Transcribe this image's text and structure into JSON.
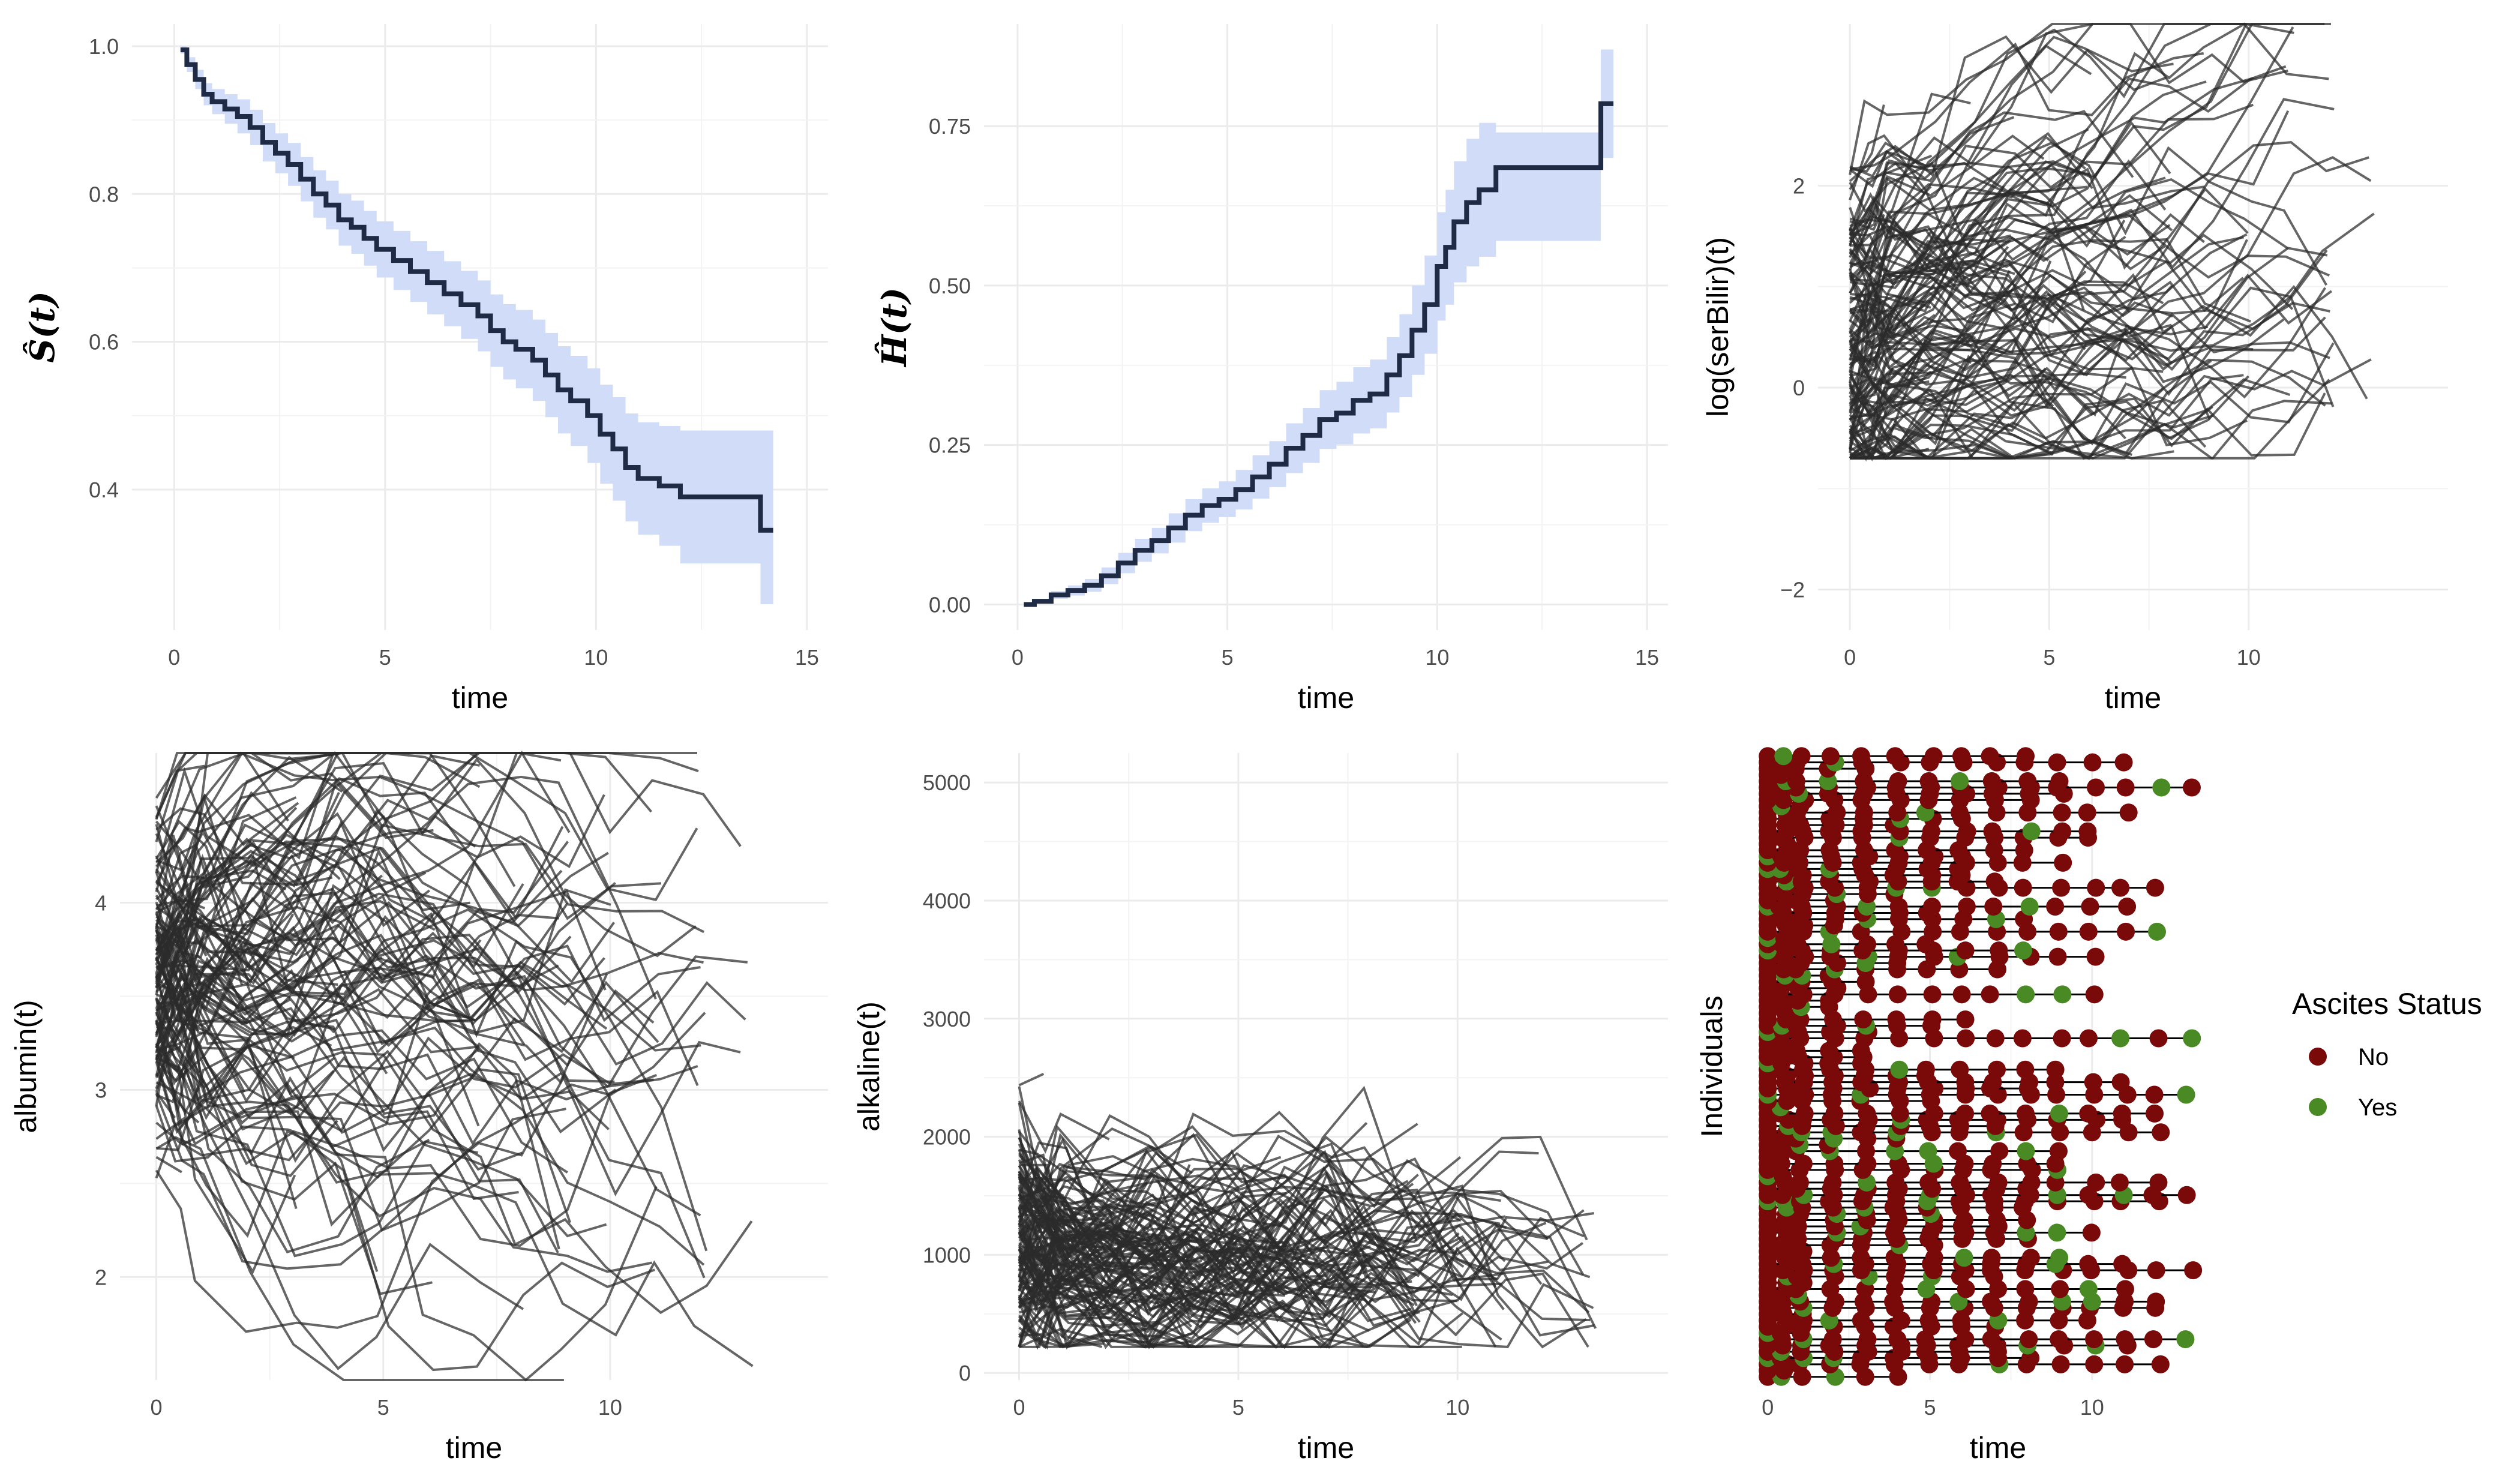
{
  "colors": {
    "ribbon": "#d0dcf8",
    "step_line": "#1f2a44",
    "traj": "#2b2b2b",
    "ascites_no": "#7a0a0a",
    "ascites_yes": "#4a8a24",
    "grid": "#ebebeb"
  },
  "chart_data": [
    {
      "type": "line",
      "id": "surv",
      "xlabel": "time",
      "ylabel": "Ŝ(t)",
      "xlim": [
        -1,
        15.5
      ],
      "ylim": [
        0.21,
        1.03
      ],
      "xticks": [
        0,
        5,
        10,
        15
      ],
      "yticks": [
        0.4,
        0.6,
        0.8,
        1.0
      ],
      "ytick_labels": [
        "0.4",
        "0.6",
        "0.8",
        "1.0"
      ],
      "grid": true,
      "series": [
        {
          "step": true,
          "x": [
            0.15,
            0.3,
            0.5,
            0.7,
            0.9,
            1.2,
            1.5,
            1.8,
            2.1,
            2.4,
            2.7,
            3.0,
            3.3,
            3.6,
            3.9,
            4.2,
            4.5,
            4.8,
            5.2,
            5.6,
            6.0,
            6.4,
            6.8,
            7.2,
            7.5,
            7.8,
            8.1,
            8.5,
            8.8,
            9.1,
            9.4,
            9.8,
            10.1,
            10.4,
            10.7,
            11.0,
            11.5,
            12.0,
            12.5,
            13.0,
            13.5,
            13.9,
            14.2
          ],
          "y": [
            0.995,
            0.975,
            0.955,
            0.935,
            0.925,
            0.915,
            0.905,
            0.89,
            0.87,
            0.855,
            0.84,
            0.82,
            0.8,
            0.785,
            0.765,
            0.755,
            0.74,
            0.725,
            0.71,
            0.695,
            0.68,
            0.665,
            0.65,
            0.635,
            0.615,
            0.6,
            0.59,
            0.575,
            0.555,
            0.535,
            0.52,
            0.5,
            0.475,
            0.455,
            0.43,
            0.415,
            0.405,
            0.39,
            0.39,
            0.39,
            0.39,
            0.345,
            0.345
          ],
          "lower": [
            0.99,
            0.965,
            0.942,
            0.92,
            0.908,
            0.895,
            0.882,
            0.866,
            0.844,
            0.828,
            0.811,
            0.79,
            0.768,
            0.752,
            0.73,
            0.719,
            0.703,
            0.687,
            0.67,
            0.654,
            0.637,
            0.621,
            0.604,
            0.587,
            0.566,
            0.549,
            0.537,
            0.52,
            0.498,
            0.476,
            0.459,
            0.436,
            0.408,
            0.385,
            0.357,
            0.339,
            0.324,
            0.3,
            0.3,
            0.3,
            0.3,
            0.245,
            0.245
          ],
          "upper": [
            1.0,
            0.985,
            0.968,
            0.95,
            0.942,
            0.935,
            0.928,
            0.914,
            0.896,
            0.882,
            0.869,
            0.85,
            0.832,
            0.818,
            0.8,
            0.791,
            0.777,
            0.763,
            0.75,
            0.736,
            0.723,
            0.709,
            0.696,
            0.683,
            0.664,
            0.651,
            0.643,
            0.63,
            0.612,
            0.594,
            0.581,
            0.564,
            0.542,
            0.525,
            0.503,
            0.491,
            0.486,
            0.48,
            0.48,
            0.48,
            0.48,
            0.48,
            0.48
          ]
        }
      ]
    },
    {
      "type": "line",
      "id": "cumhaz",
      "xlabel": "time",
      "ylabel": "Ĥ(t)",
      "xlim": [
        -0.8,
        15.5
      ],
      "ylim": [
        -0.04,
        0.91
      ],
      "xticks": [
        0,
        5,
        10,
        15
      ],
      "yticks": [
        0,
        0.25,
        0.5,
        0.75
      ],
      "ytick_labels": [
        "0.00",
        "0.25",
        "0.50",
        "0.75"
      ],
      "grid": true,
      "series": [
        {
          "step": true,
          "x": [
            0.15,
            0.4,
            0.8,
            1.2,
            1.6,
            2.0,
            2.4,
            2.8,
            3.2,
            3.6,
            4.0,
            4.4,
            4.8,
            5.2,
            5.6,
            6.0,
            6.4,
            6.8,
            7.2,
            7.6,
            8.0,
            8.4,
            8.8,
            9.1,
            9.4,
            9.7,
            10.0,
            10.2,
            10.4,
            10.7,
            11.0,
            11.4,
            12.0,
            12.5,
            13.0,
            13.6,
            13.9,
            14.2
          ],
          "y": [
            0.0,
            0.005,
            0.015,
            0.022,
            0.03,
            0.045,
            0.065,
            0.085,
            0.1,
            0.12,
            0.14,
            0.155,
            0.165,
            0.18,
            0.2,
            0.22,
            0.245,
            0.265,
            0.29,
            0.3,
            0.32,
            0.33,
            0.36,
            0.39,
            0.43,
            0.47,
            0.53,
            0.56,
            0.6,
            0.63,
            0.65,
            0.685,
            0.685,
            0.685,
            0.685,
            0.685,
            0.785,
            0.785
          ],
          "lower": [
            0.0,
            0.002,
            0.009,
            0.014,
            0.02,
            0.032,
            0.049,
            0.067,
            0.08,
            0.097,
            0.115,
            0.128,
            0.137,
            0.149,
            0.166,
            0.184,
            0.206,
            0.222,
            0.244,
            0.251,
            0.268,
            0.276,
            0.301,
            0.325,
            0.36,
            0.393,
            0.445,
            0.47,
            0.505,
            0.53,
            0.545,
            0.57,
            0.57,
            0.57,
            0.57,
            0.57,
            0.7,
            0.7
          ],
          "upper": [
            0.0,
            0.008,
            0.021,
            0.03,
            0.04,
            0.058,
            0.081,
            0.103,
            0.12,
            0.143,
            0.165,
            0.182,
            0.193,
            0.211,
            0.234,
            0.256,
            0.284,
            0.308,
            0.336,
            0.349,
            0.372,
            0.384,
            0.419,
            0.455,
            0.5,
            0.547,
            0.615,
            0.65,
            0.695,
            0.73,
            0.755,
            0.74,
            0.74,
            0.74,
            0.74,
            0.74,
            0.87,
            0.87
          ]
        }
      ]
    },
    {
      "type": "line",
      "id": "serbilir",
      "xlabel": "time",
      "ylabel": "log(serBilir)(t)",
      "xlim": [
        -0.8,
        15.0
      ],
      "ylim": [
        -2.4,
        3.6
      ],
      "xticks": [
        0,
        5,
        10
      ],
      "yticks": [
        -2,
        0,
        2
      ],
      "ytick_labels": [
        "−2",
        "0",
        "2"
      ],
      "grid": true,
      "trajectories": {
        "count": 140,
        "baseline_mean": 0.3,
        "baseline_sd": 0.9,
        "max_followup": 14.1
      }
    },
    {
      "type": "line",
      "id": "albumin",
      "xlabel": "time",
      "ylabel": "albumin(t)",
      "xlim": [
        -0.8,
        14.8
      ],
      "ylim": [
        1.45,
        4.8
      ],
      "xticks": [
        0,
        5,
        10
      ],
      "yticks": [
        2,
        3,
        4
      ],
      "ytick_labels": [
        "2",
        "3",
        "4"
      ],
      "grid": true,
      "trajectories": {
        "count": 140,
        "baseline_mean": 3.55,
        "baseline_sd": 0.38,
        "max_followup": 14.1
      }
    },
    {
      "type": "line",
      "id": "alkaline",
      "xlabel": "time",
      "ylabel": "alkaline(t)",
      "xlim": [
        -0.8,
        14.8
      ],
      "ylim": [
        -60,
        5250
      ],
      "xticks": [
        0,
        5,
        10
      ],
      "yticks": [
        0,
        1000,
        2000,
        3000,
        4000,
        5000
      ],
      "ytick_labels": [
        "0",
        "1000",
        "2000",
        "3000",
        "4000",
        "5000"
      ],
      "grid": true,
      "trajectories": {
        "count": 140,
        "baseline_mean": 1200,
        "baseline_sd": 750,
        "max_followup": 14.1
      }
    },
    {
      "type": "scatter",
      "id": "ascites",
      "xlabel": "time",
      "ylabel": "Individuals",
      "xlim": [
        -0.3,
        14.5
      ],
      "ylim": [
        0,
        100
      ],
      "xticks": [
        0,
        5,
        10
      ],
      "yticks": [],
      "grid": true,
      "legend": {
        "title": "Ascites Status",
        "placement": "right",
        "items": [
          "No",
          "Yes"
        ]
      },
      "individuals": {
        "count": 100,
        "yes_fraction": 0.1
      }
    }
  ]
}
